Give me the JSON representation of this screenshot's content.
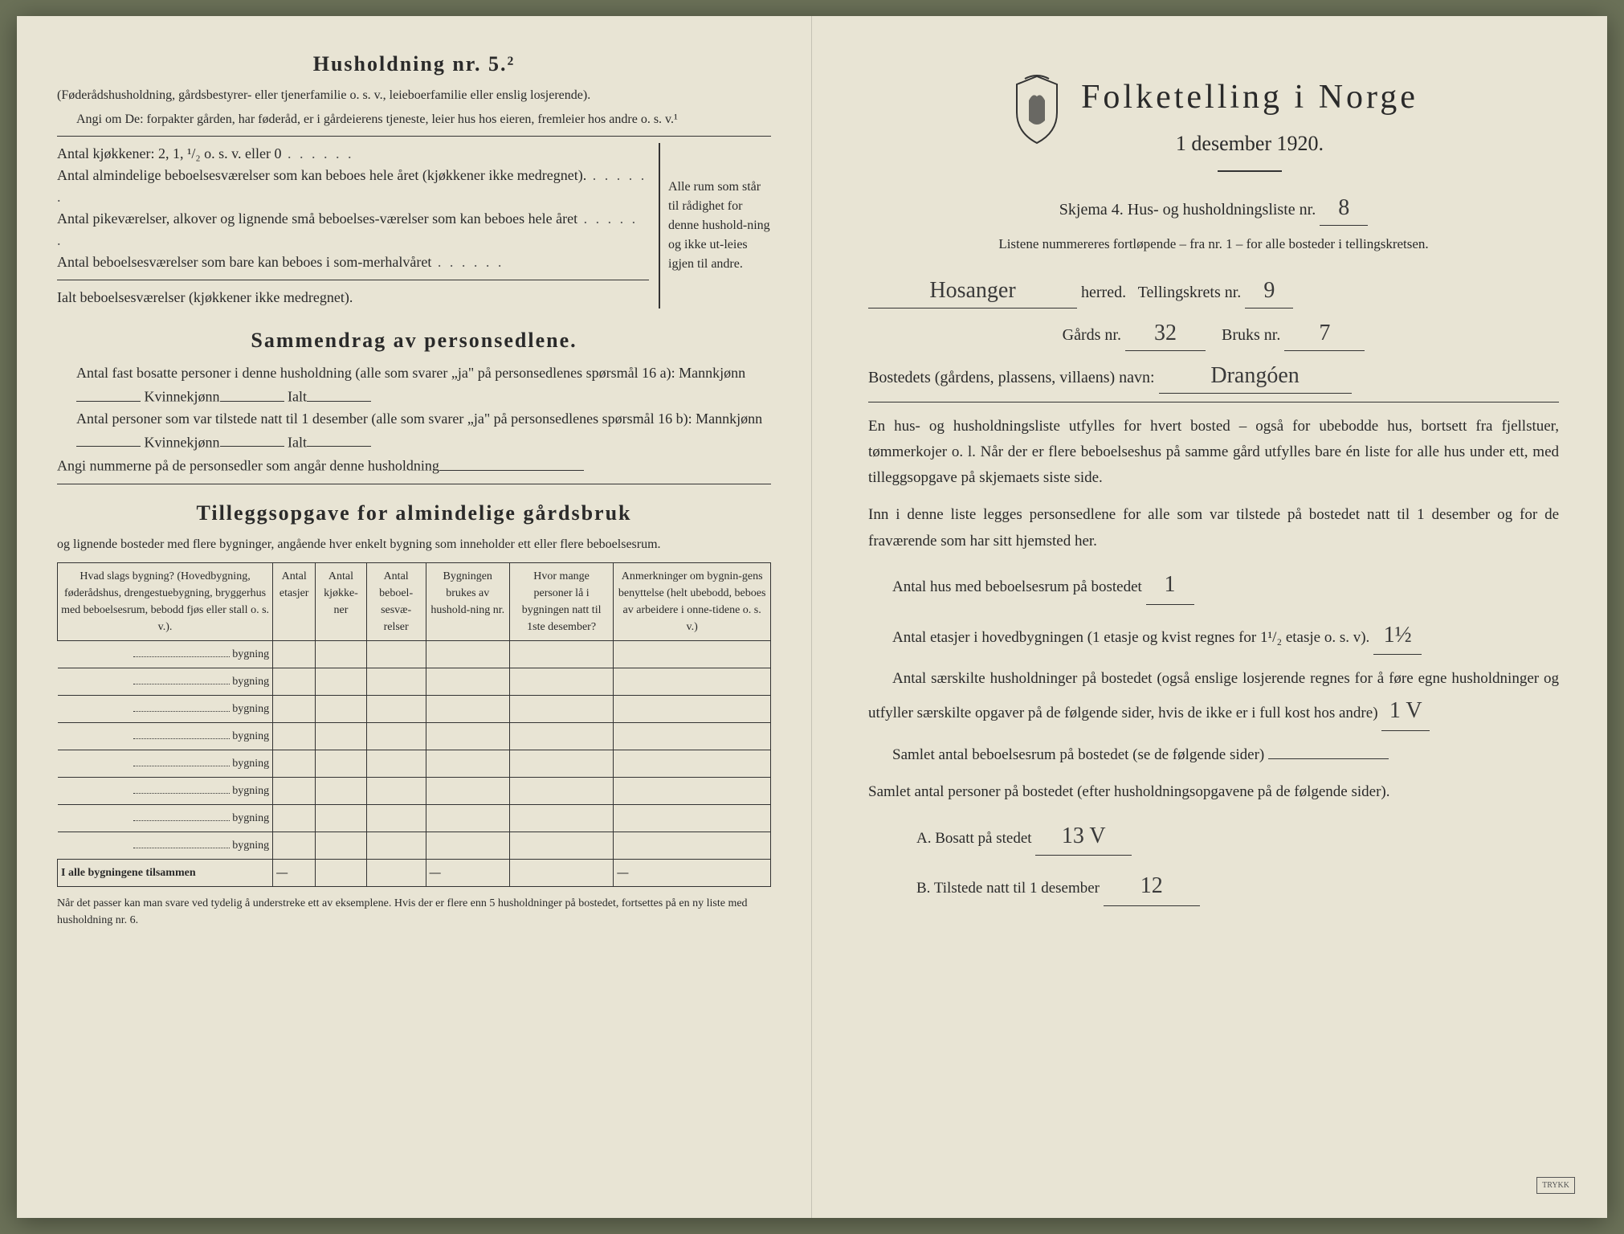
{
  "left": {
    "heading": "Husholdning nr. 5.²",
    "sub1": "(Føderådshusholdning, gårdsbestyrer- eller tjenerfamilie o. s. v., leieboerfamilie eller enslig losjerende).",
    "sub2": "Angi om De: forpakter gården, har føderåd, er i gårdeierens tjeneste, leier hus hos eieren, fremleier hos andre o. s. v.¹",
    "kitchens_label": "Antal kjøkkener: 2, 1, ¹/₂ o. s. v. eller 0",
    "rooms1": "Antal almindelige beboelsesværelser som kan beboes hele året (kjøkkener ikke medregnet).",
    "rooms2": "Antal pikeværelser, alkover og lignende små beboelses-værelser som kan beboes hele året",
    "rooms3": "Antal beboelsesværelser som bare kan beboes i som-merhalvåret",
    "rooms_total": "Ialt beboelsesværelser (kjøkkener ikke medregnet).",
    "bracket_text": "Alle rum som står til rådighet for denne hushold-ning og ikke ut-leies igjen til andre.",
    "summary_heading": "Sammendrag av personsedlene.",
    "summary1a": "Antal fast bosatte personer i denne husholdning (alle som svarer „ja\" på personsedlenes spørsmål 16 a): Mannkjønn",
    "summary1b": "Kvinnekjønn",
    "summary1c": "Ialt",
    "summary2a": "Antal personer som var tilstede natt til 1 desember (alle som svarer „ja\" på personsedlenes spørsmål 16 b): Mannkjønn",
    "summary3": "Angi nummerne på de personsedler som angår denne husholdning",
    "tillegg_heading": "Tilleggsopgave for almindelige gårdsbruk",
    "tillegg_sub": "og lignende bosteder med flere bygninger, angående hver enkelt bygning som inneholder ett eller flere beboelsesrum.",
    "table": {
      "headers": [
        "Hvad slags bygning?\n(Hovedbygning, føderådshus, drengestuebygning, bryggerhus med beboelsesrum, bebodd fjøs eller stall o. s. v.).",
        "Antal etasjer",
        "Antal kjøkke-ner",
        "Antal beboel-sesvæ-relser",
        "Bygningen brukes av hushold-ning nr.",
        "Hvor mange personer lå i bygningen natt til 1ste desember?",
        "Anmerkninger om bygnin-gens benyttelse (helt ubebodd, beboes av arbeidere i onne-tidene o. s. v.)"
      ],
      "row_suffix": "bygning",
      "row_count": 8,
      "footer": "I alle bygningene tilsammen"
    },
    "footnote": "Når det passer kan man svare ved tydelig å understreke ett av eksemplene.\nHvis der er flere enn 5 husholdninger på bostedet, fortsettes på en ny liste med husholdning nr. 6."
  },
  "right": {
    "title": "Folketelling i Norge",
    "subtitle": "1 desember 1920.",
    "skjema": "Skjema 4.   Hus- og husholdningsliste nr.",
    "skjema_nr": "8",
    "listene": "Listene nummereres fortløpende – fra nr. 1 – for alle bosteder i tellingskretsen.",
    "herred_value": "Hosanger",
    "herred_label": "herred.",
    "tellingskrets_label": "Tellingskrets nr.",
    "tellingskrets_nr": "9",
    "gards_label": "Gårds nr.",
    "gards_nr": "32",
    "bruks_label": "Bruks nr.",
    "bruks_nr": "7",
    "bostedets_label": "Bostedets (gårdens, plassens, villaens) navn:",
    "bostedets_value": "Drangóen",
    "para1": "En hus- og husholdningsliste utfylles for hvert bosted – også for ubebodde hus, bortsett fra fjellstuer, tømmerkojer o. l.  Når der er flere beboelseshus på samme gård utfylles bare én liste for alle hus under ett, med tilleggsopgave på skjemaets siste side.",
    "para2": "Inn i denne liste legges personsedlene for alle som var tilstede på bostedet natt til 1 desember og for de fraværende som har sitt hjemsted her.",
    "q1_label": "Antal hus med beboelsesrum på bostedet",
    "q1_value": "1",
    "q2_label_a": "Antal etasjer i hovedbygningen (1 etasje og kvist regnes for 1¹/₂ etasje o. s. v).",
    "q2_value": "1½",
    "q3_label": "Antal særskilte husholdninger på bostedet (også enslige losjerende regnes for å føre egne husholdninger og utfyller særskilte opgaver på de følgende sider, hvis de ikke er i full kost hos andre)",
    "q3_value": "1 V",
    "q4_label": "Samlet antal beboelsesrum på bostedet (se de følgende sider)",
    "q5_label": "Samlet antal personer på bostedet (efter husholdningsopgavene på de følgende sider).",
    "q5a_label": "A.  Bosatt på stedet",
    "q5a_value": "13 V",
    "q5b_label": "B.  Tilstede natt til 1 desember",
    "q5b_value": "12"
  }
}
